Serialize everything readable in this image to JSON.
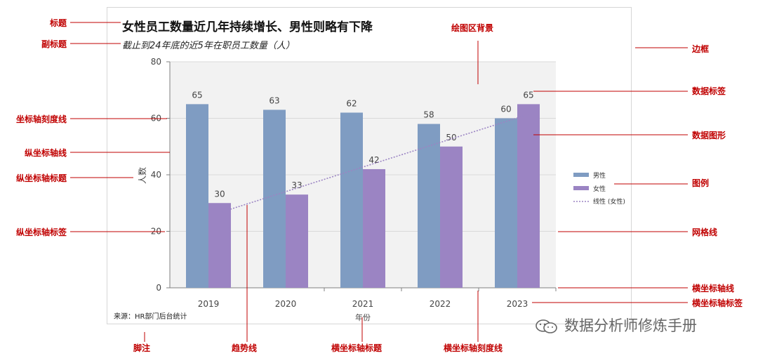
{
  "colors": {
    "male": "#7f9cc2",
    "female": "#9b84c3",
    "annotation": "#c00000",
    "plot_bg": "#f2f2f2",
    "grid": "#d9d9d9",
    "axis": "#808080",
    "trend": "#9b84c3"
  },
  "footnote": "来源：HR部门后台统计",
  "watermark": {
    "text": "数据分析师修炼手册",
    "icon": "wechat-icon"
  },
  "chart_data": {
    "type": "bar",
    "title": "女性员工数量近几年持续增长、男性则略有下降",
    "subtitle": "截止到24年底的近5年在职员工数量（人）",
    "xlabel": "年份",
    "ylabel": "人数",
    "categories": [
      "2019",
      "2020",
      "2021",
      "2022",
      "2023"
    ],
    "ylim": [
      0,
      80
    ],
    "yticks": [
      0,
      20,
      40,
      60,
      80
    ],
    "grid": true,
    "legend_position": "right",
    "series": [
      {
        "name": "男性",
        "values": [
          65,
          63,
          62,
          58,
          60
        ]
      },
      {
        "name": "女性",
        "values": [
          30,
          33,
          42,
          50,
          65
        ]
      }
    ],
    "trendline": {
      "name": "线性 (女性)",
      "series": "女性",
      "type": "linear"
    }
  },
  "annotations": {
    "title": "标题",
    "subtitle": "副标题",
    "plot_bg": "绘图区背景",
    "border": "边框",
    "data_label": "数据标签",
    "y_gridline_tick": "坐标轴刻度线",
    "data_shape": "数据图形",
    "y_axis_line": "纵坐标轴线",
    "y_axis_title": "纵坐标轴标题",
    "legend": "图例",
    "y_axis_label": "纵坐标轴标签",
    "gridline": "网格线",
    "x_axis_line": "横坐标轴线",
    "x_axis_label": "横坐标轴标签",
    "footnote": "脚注",
    "trendline": "趋势线",
    "x_axis_title": "横坐标轴标题",
    "x_axis_tick": "横坐标轴刻度线"
  }
}
